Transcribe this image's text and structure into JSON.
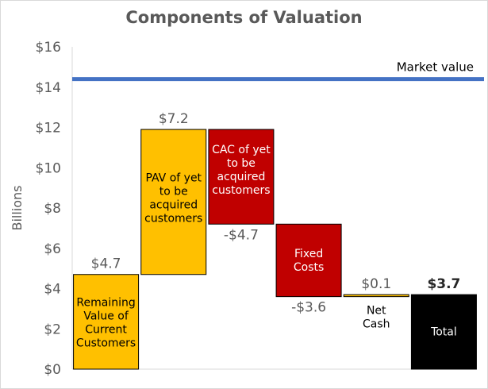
{
  "chart_data": {
    "type": "waterfall",
    "title": "Components of Valuation",
    "ylabel": "Billions",
    "ylim": [
      0,
      16
    ],
    "yticks": [
      "$0",
      "$2",
      "$4",
      "$6",
      "$8",
      "$10",
      "$12",
      "$14",
      "$16"
    ],
    "gridlines": false,
    "reference_line": {
      "label": "Market value",
      "value": 14.4,
      "color": "#4472c4"
    },
    "bars": [
      {
        "category": "Remaining Value of Current Customers",
        "base": 0,
        "value": 4.7,
        "value_label": "$4.7",
        "color": "#ffc000",
        "label_position": "above"
      },
      {
        "category": "PAV of yet to be acquired customers",
        "base": 4.7,
        "value": 7.2,
        "value_label": "$7.2",
        "color": "#ffc000",
        "label_position": "above"
      },
      {
        "category": "CAC of yet to be acquired customers",
        "base": 11.9,
        "value": -4.7,
        "value_label": "-$4.7",
        "color": "#c00000",
        "label_position": "below"
      },
      {
        "category": "Fixed Costs",
        "base": 7.2,
        "value": -3.6,
        "value_label": "-$3.6",
        "color": "#c00000",
        "label_position": "below"
      },
      {
        "category": "Net Cash",
        "base": 3.6,
        "value": 0.1,
        "value_label": "$0.1",
        "color": "#ffc000",
        "label_position": "above"
      },
      {
        "category": "Total",
        "base": 0,
        "value": 3.7,
        "value_label": "$3.7",
        "color": "#000000",
        "label_position": "above",
        "total": true
      }
    ]
  }
}
